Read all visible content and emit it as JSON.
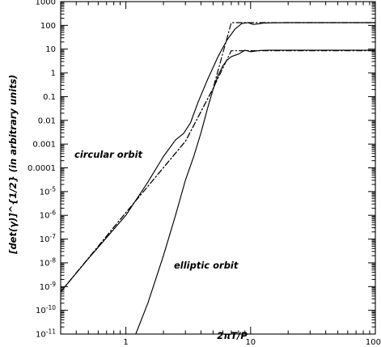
{
  "chart_data": {
    "type": "line",
    "title": "",
    "xlabel": "2πT/P",
    "ylabel": "[det(γ)]^{1/2}   (in arbitrary units)",
    "xscale": "log",
    "yscale": "log",
    "xlim": [
      0.3,
      100
    ],
    "ylim": [
      1e-11,
      1000
    ],
    "grid": false,
    "x_ticks": [
      {
        "value": 1,
        "label": "1"
      },
      {
        "value": 10,
        "label": "10"
      },
      {
        "value": 100,
        "label": "100"
      }
    ],
    "y_ticks": [
      {
        "value": 1000,
        "base": "1000",
        "exp": ""
      },
      {
        "value": 100,
        "base": "100",
        "exp": ""
      },
      {
        "value": 10,
        "base": "10",
        "exp": ""
      },
      {
        "value": 1,
        "base": "1",
        "exp": ""
      },
      {
        "value": 0.1,
        "base": "0.1",
        "exp": ""
      },
      {
        "value": 0.01,
        "base": "0.01",
        "exp": ""
      },
      {
        "value": 0.001,
        "base": "0.001",
        "exp": ""
      },
      {
        "value": 0.0001,
        "base": "0.0001",
        "exp": ""
      },
      {
        "value": 1e-05,
        "base": "10",
        "exp": "-5"
      },
      {
        "value": 1e-06,
        "base": "10",
        "exp": "-6"
      },
      {
        "value": 1e-07,
        "base": "10",
        "exp": "-7"
      },
      {
        "value": 1e-08,
        "base": "10",
        "exp": "-8"
      },
      {
        "value": 1e-09,
        "base": "10",
        "exp": "-9"
      },
      {
        "value": 1e-10,
        "base": "10",
        "exp": "-10"
      },
      {
        "value": 1e-11,
        "base": "10",
        "exp": "-11"
      }
    ],
    "series": [
      {
        "style": "solid",
        "x": [
          0.3,
          0.5,
          1,
          1.5,
          2,
          2.5,
          2.9,
          3.3,
          3.8,
          4.5,
          5.5,
          6.5,
          7.5,
          8.5,
          9.5,
          10.5,
          11.5,
          12.5,
          15,
          20,
          30,
          50,
          100
        ],
        "y": [
          6e-10,
          1.5e-08,
          1e-06,
          2.5e-05,
          0.0003,
          0.0015,
          0.0028,
          0.008,
          0.06,
          0.5,
          5,
          25,
          70,
          120,
          130,
          110,
          115,
          125,
          128,
          130,
          130,
          130,
          130
        ]
      },
      {
        "style": "dashdot",
        "x": [
          0.3,
          1,
          3,
          5,
          7,
          100
        ],
        "y": [
          6e-10,
          1.3e-06,
          0.0013,
          0.22,
          130,
          130
        ]
      },
      {
        "style": "solid",
        "x": [
          1.2,
          1.5,
          2,
          2.5,
          3,
          3.5,
          4,
          4.5,
          5,
          5.5,
          6,
          6.5,
          7,
          7.5,
          8,
          8.5,
          9,
          9.5,
          10,
          11,
          12,
          14,
          20,
          50,
          100
        ],
        "y": [
          1e-11,
          2e-10,
          2e-08,
          1e-06,
          3e-05,
          0.0003,
          0.003,
          0.03,
          0.2,
          0.8,
          2,
          3.5,
          4.8,
          5.5,
          6.2,
          7.5,
          9,
          8.3,
          7.8,
          8.3,
          8.8,
          9,
          9,
          9,
          9
        ]
      },
      {
        "style": "dashdot",
        "x": [
          0.3,
          1,
          3,
          5,
          7,
          100
        ],
        "y": [
          6e-10,
          1.3e-06,
          0.0013,
          0.22,
          8.6,
          8.6
        ]
      }
    ],
    "annotations": [
      "circular orbit",
      "elliptic orbit"
    ]
  }
}
